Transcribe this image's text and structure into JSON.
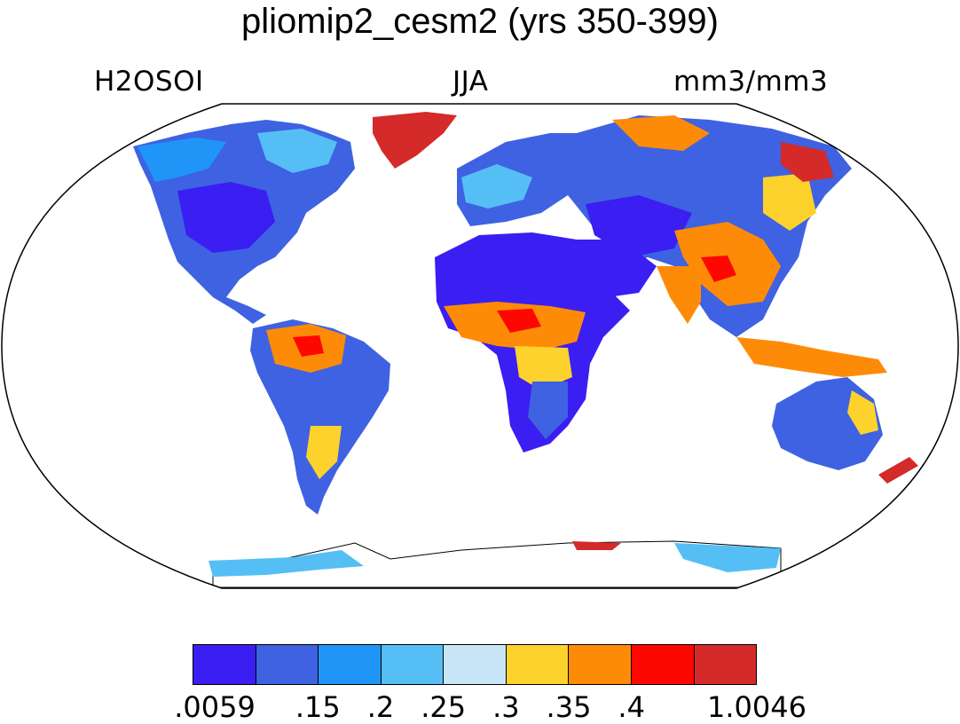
{
  "title": "pliomip2_cesm2 (yrs 350-399)",
  "left_label": "H2OSOI",
  "center_label": "JJA",
  "right_label": "mm3/mm3",
  "colorbar": {
    "colors": [
      "#3a1ef2",
      "#3e62e2",
      "#1f96f7",
      "#55bff5",
      "#c8e6f7",
      "#fed22d",
      "#fe8b08",
      "#fd0800",
      "#d42a2a"
    ],
    "tick_labels": [
      ".0059",
      ".15",
      ".2",
      ".25",
      ".3",
      ".35",
      ".4",
      "1.0046"
    ]
  },
  "map": {
    "projection": "Robinson",
    "land_fill_default": "#3e62e2",
    "ocean_color": "#ffffff"
  }
}
